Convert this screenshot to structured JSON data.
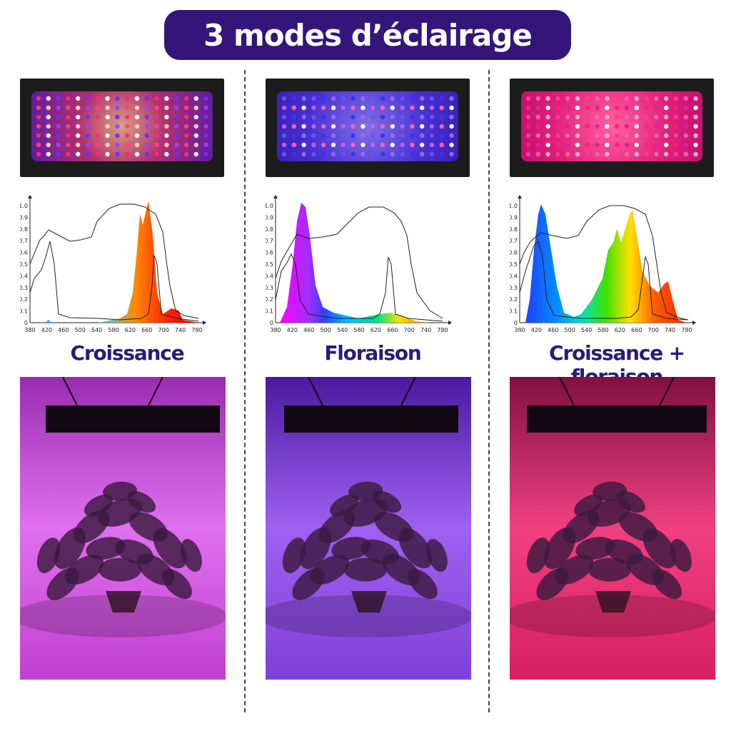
{
  "title": "3 modes d’éclairage",
  "modes": [
    {
      "label": "Croissance",
      "led_color": "#c0306a",
      "photo_color": "#d44ad6"
    },
    {
      "label": "Floraison",
      "led_color": "#5a38d8",
      "photo_color": "#8b48e6"
    },
    {
      "label": "Croissance + floraison",
      "led_color": "#e8307a",
      "photo_color": "#e0306a"
    }
  ],
  "axis": {
    "x_ticks": [
      "380",
      "420",
      "460",
      "500",
      "540",
      "580",
      "620",
      "660",
      "700",
      "740",
      "780"
    ],
    "y_ticks": [
      "0",
      "0.1",
      "0.2",
      "0.3",
      "0.4",
      "0.5",
      "0.6",
      "0.7",
      "0.8",
      "0.9",
      "1.0"
    ]
  },
  "colors": {
    "banner_bg": "#34157a",
    "label_color": "#2d1a78"
  }
}
